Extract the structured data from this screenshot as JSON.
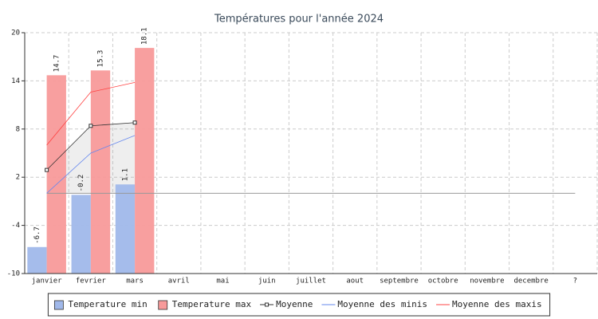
{
  "chart_data": {
    "type": "bar",
    "title": "Températures pour l'année 2024",
    "categories": [
      "janvier",
      "fevrier",
      "mars",
      "avril",
      "mai",
      "juin",
      "juillet",
      "aout",
      "septembre",
      "octobre",
      "novembre",
      "decembre",
      "?"
    ],
    "ylim": [
      -10,
      20
    ],
    "yticks": [
      -10,
      -4,
      2,
      8,
      14,
      20
    ],
    "grid": true,
    "reference_line": 0,
    "series": [
      {
        "name": "Temperature min",
        "kind": "bar",
        "color": "#a0b8ea",
        "values": [
          -6.7,
          -0.2,
          1.1,
          null,
          null,
          null,
          null,
          null,
          null,
          null,
          null,
          null,
          null
        ]
      },
      {
        "name": "Temperature max",
        "kind": "bar",
        "color": "#f89a9a",
        "values": [
          14.7,
          15.3,
          18.1,
          null,
          null,
          null,
          null,
          null,
          null,
          null,
          null,
          null,
          null
        ]
      },
      {
        "name": "Moyenne",
        "kind": "line",
        "marker": true,
        "fill": true,
        "color": "#333333",
        "values": [
          2.9,
          8.4,
          8.8,
          null,
          null,
          null,
          null,
          null,
          null,
          null,
          null,
          null,
          null
        ]
      },
      {
        "name": "Moyenne des minis",
        "kind": "line",
        "color": "#6688ee",
        "values": [
          0,
          5,
          7.2,
          null,
          null,
          null,
          null,
          null,
          null,
          null,
          null,
          null,
          null
        ]
      },
      {
        "name": "Moyenne des maxis",
        "kind": "line",
        "color": "#ff4444",
        "values": [
          6,
          12.6,
          13.8,
          null,
          null,
          null,
          null,
          null,
          null,
          null,
          null,
          null,
          null
        ]
      }
    ]
  }
}
